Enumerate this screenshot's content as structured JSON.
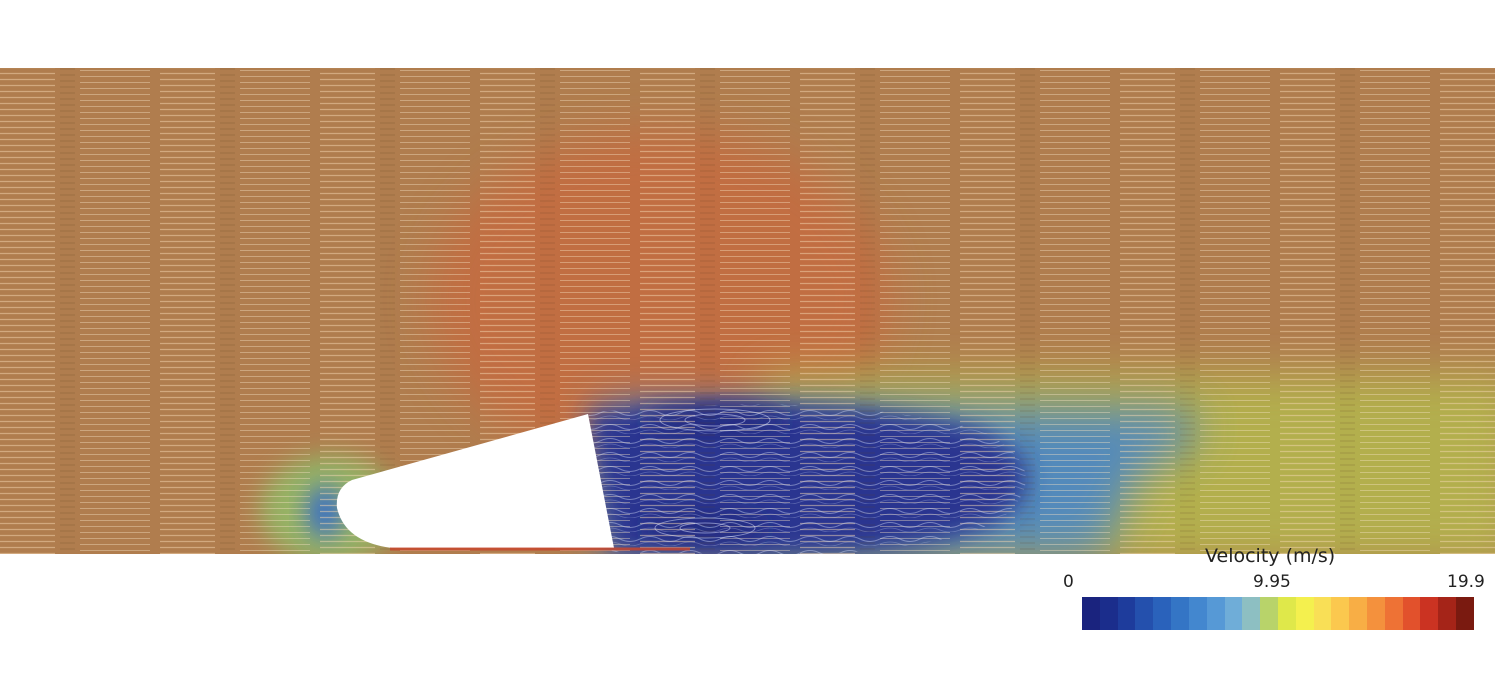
{
  "colorbar": {
    "title": "Velocity (m/s)",
    "min_label": "0",
    "mid_label": "9.95",
    "max_label": "19.9",
    "colors": [
      "#1a237e",
      "#1b2d8c",
      "#1e3c9c",
      "#2450ad",
      "#2a62bb",
      "#3475c5",
      "#4387cf",
      "#5699d6",
      "#6fadd8",
      "#8dbfc2",
      "#b8d36a",
      "#dfe84a",
      "#f4f04e",
      "#f9df56",
      "#fbc84e",
      "#f8ae45",
      "#f4913d",
      "#ee7235",
      "#e2512c",
      "#cb3322",
      "#a52418",
      "#7a1a10"
    ]
  },
  "field": {
    "free_stream_color": "#b07d4e",
    "accelerated_color": "#c9673c",
    "wake_color": "#b4b84e",
    "recirculation_color": "#2a3590",
    "body_color": "#ffffff"
  }
}
